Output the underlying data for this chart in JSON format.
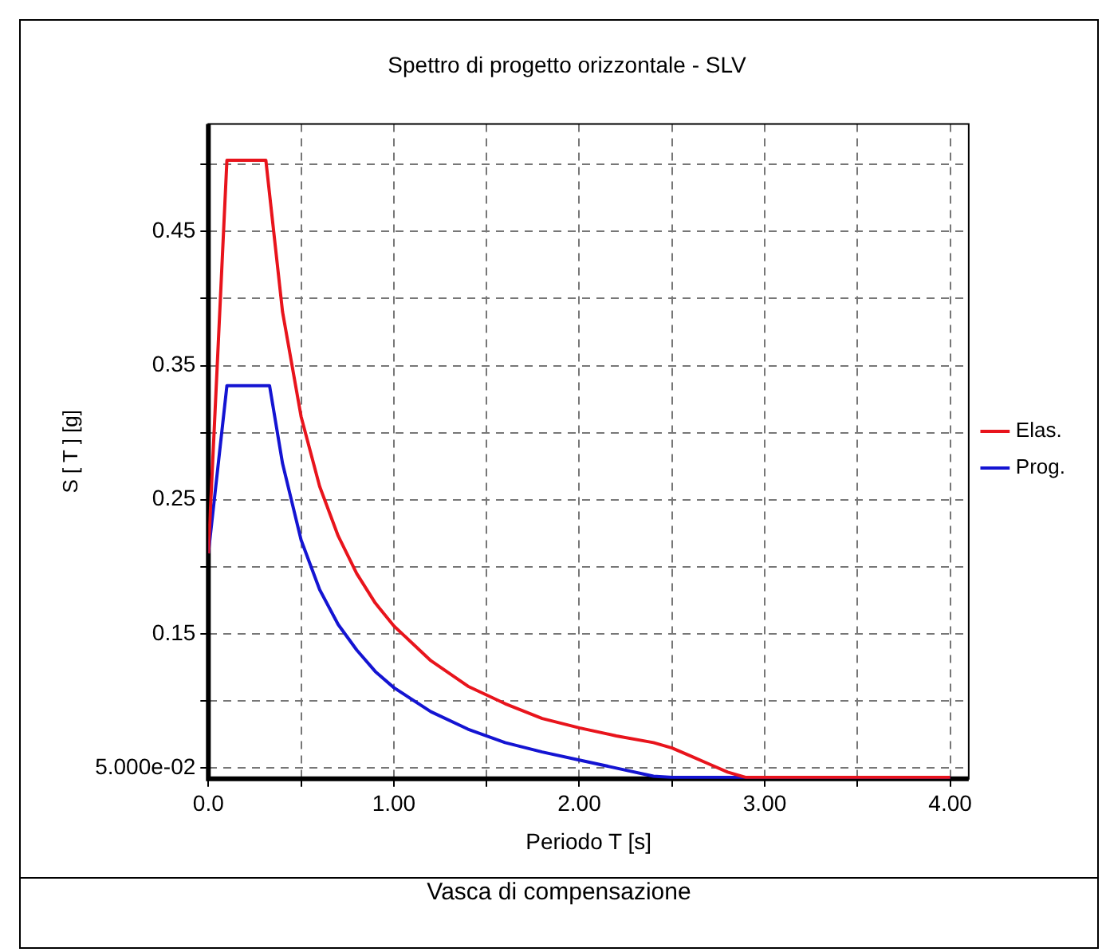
{
  "chart_data": {
    "type": "line",
    "title": "Spettro di progetto orizzontale - SLV",
    "xlabel": "Periodo T [s]",
    "ylabel": "S [ T ] [g]",
    "annotations": [
      "Vasca di compensazione"
    ],
    "series": [
      {
        "name": "Elas.",
        "color": "#e8141c",
        "x": [
          0,
          0.1,
          0.31,
          0.4,
          0.5,
          0.6,
          0.7,
          0.8,
          0.9,
          1.0,
          1.2,
          1.4,
          1.6,
          1.8,
          2.0,
          2.2,
          2.4,
          2.5,
          2.6,
          2.7,
          2.8,
          2.9,
          4.0
        ],
        "values": [
          0.21,
          0.503,
          0.503,
          0.39,
          0.312,
          0.26,
          0.223,
          0.195,
          0.173,
          0.156,
          0.13,
          0.111,
          0.098,
          0.087,
          0.08,
          0.074,
          0.069,
          0.065,
          0.059,
          0.053,
          0.047,
          0.043,
          0.043
        ]
      },
      {
        "name": "Prog.",
        "color": "#1414d2",
        "x": [
          0,
          0.1,
          0.33,
          0.4,
          0.5,
          0.6,
          0.7,
          0.8,
          0.9,
          1.0,
          1.2,
          1.4,
          1.6,
          1.8,
          2.0,
          2.2,
          2.4,
          2.5,
          4.0
        ],
        "values": [
          0.21,
          0.335,
          0.335,
          0.277,
          0.22,
          0.183,
          0.157,
          0.138,
          0.122,
          0.11,
          0.092,
          0.079,
          0.069,
          0.062,
          0.056,
          0.05,
          0.044,
          0.043,
          0.043
        ]
      }
    ],
    "xlim": [
      0,
      4.1
    ],
    "xticks": [
      {
        "value": 0,
        "label": "0.0"
      },
      {
        "value": 0.5,
        "label": null
      },
      {
        "value": 1,
        "label": "1.00"
      },
      {
        "value": 1.5,
        "label": null
      },
      {
        "value": 2,
        "label": "2.00"
      },
      {
        "value": 2.5,
        "label": null
      },
      {
        "value": 3,
        "label": "3.00"
      },
      {
        "value": 3.5,
        "label": null
      },
      {
        "value": 4,
        "label": "4.00"
      }
    ],
    "ylim": [
      0.042,
      0.53
    ],
    "yticks": [
      {
        "value": 0.05,
        "label": "5.000e-02"
      },
      {
        "value": 0.1,
        "label": null
      },
      {
        "value": 0.15,
        "label": "0.15"
      },
      {
        "value": 0.2,
        "label": null
      },
      {
        "value": 0.25,
        "label": "0.25"
      },
      {
        "value": 0.3,
        "label": null
      },
      {
        "value": 0.35,
        "label": "0.35"
      },
      {
        "value": 0.4,
        "label": null
      },
      {
        "value": 0.45,
        "label": "0.45"
      },
      {
        "value": 0.5,
        "label": null
      }
    ],
    "grid": true,
    "legend": "right",
    "marker": "none",
    "line_style": "solid"
  }
}
